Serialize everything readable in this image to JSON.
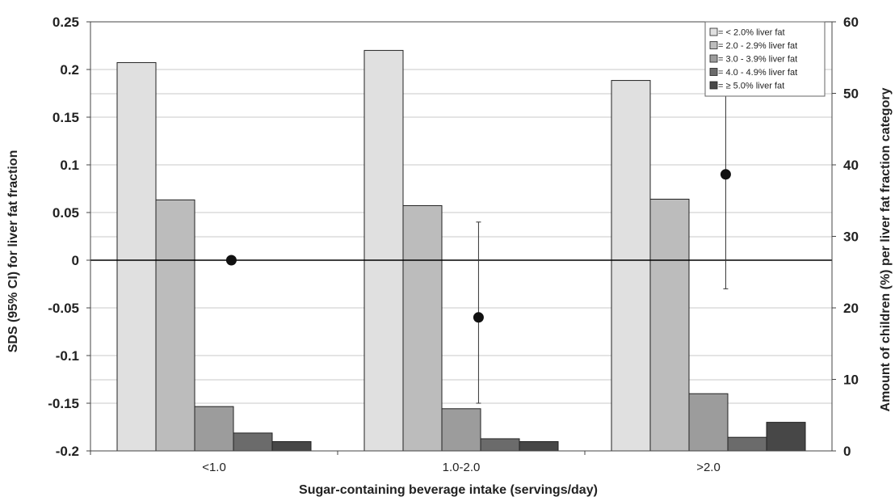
{
  "chart_data": {
    "type": "bar",
    "categories": [
      "<1.0",
      "1.0-2.0",
      ">2.0"
    ],
    "xlabel": "Sugar-containing beverage intake (servings/day)",
    "bars": {
      "ylabel": "Amount of children (%) per liver fat fraction category",
      "ylim": [
        0,
        60
      ],
      "yticks": [
        0,
        10,
        20,
        30,
        40,
        50,
        60
      ],
      "series": [
        {
          "name": "= < 2.0% liver fat",
          "color": "#e0e0e0",
          "values": [
            54.3,
            56.0,
            51.8
          ]
        },
        {
          "name": "= 2.0 - 2.9% liver fat",
          "color": "#bcbcbc",
          "values": [
            35.1,
            34.3,
            35.2
          ]
        },
        {
          "name": "= 3.0 - 3.9% liver fat",
          "color": "#9c9c9c",
          "values": [
            6.2,
            5.9,
            8.0
          ]
        },
        {
          "name": "= 4.0 - 4.9% liver fat",
          "color": "#6b6b6b",
          "values": [
            2.5,
            1.7,
            1.9
          ]
        },
        {
          "name": "= ≥ 5.0% liver fat",
          "color": "#474747",
          "values": [
            1.3,
            1.3,
            4.0
          ]
        }
      ]
    },
    "points": {
      "ylabel": "SDS (95% CI) for liver fat fraction",
      "ylim": [
        -0.2,
        0.25
      ],
      "yticks": [
        "0.25",
        "0.2",
        "0.15",
        "0.1",
        "0.05",
        "0",
        "-0.05",
        "-0.1",
        "-0.15",
        "-0.2"
      ],
      "values": [
        0,
        -0.06,
        0.09
      ],
      "ci_lower": [
        null,
        -0.15,
        -0.03
      ],
      "ci_upper": [
        null,
        0.04,
        0.21
      ]
    },
    "grid": true,
    "legend_position": "top-right"
  }
}
